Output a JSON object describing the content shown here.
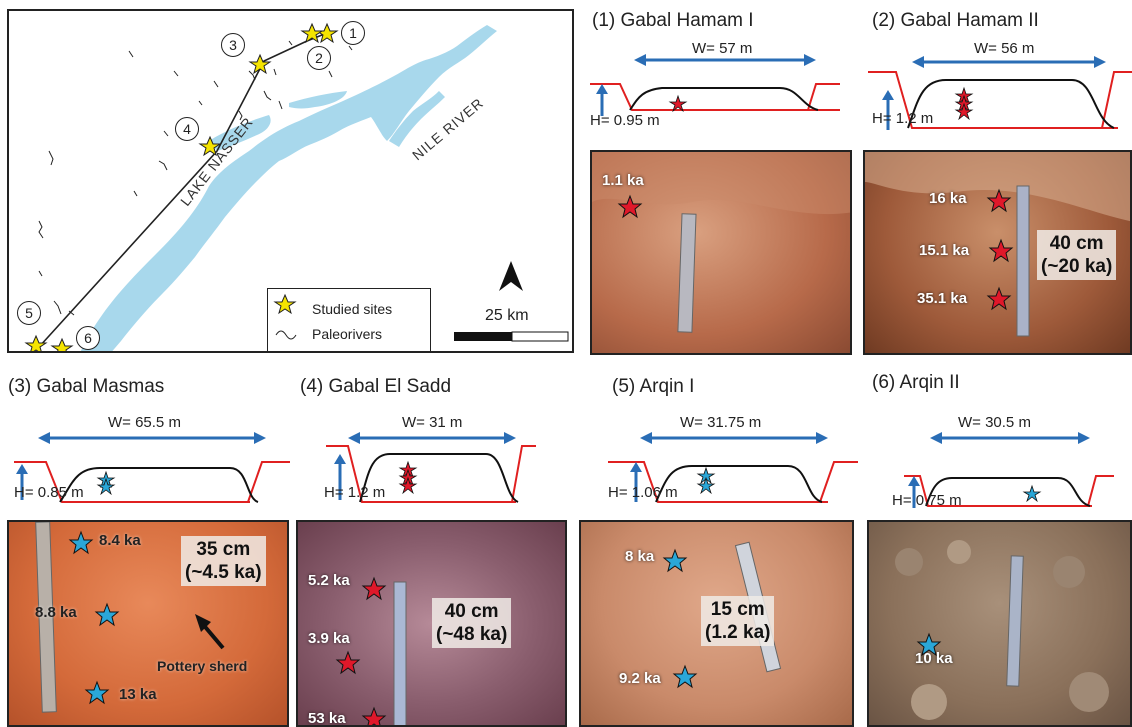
{
  "map": {
    "sites": [
      "1",
      "2",
      "3",
      "4",
      "5",
      "6"
    ],
    "lake_label": "LAKE NASSER",
    "river_label": "NILE RIVER",
    "legend": {
      "studied_sites": "Studied sites",
      "paleorivers": "Paleorivers"
    },
    "scale_label": "25 km",
    "colors": {
      "water": "#a8d8ec",
      "star": "#f5e400"
    }
  },
  "panels": [
    {
      "title": "(1) Gabal Hamam I",
      "width": "W= 57 m",
      "height": "H= 0.95 m",
      "ages": [
        "1.1   ka"
      ]
    },
    {
      "title": "(2) Gabal Hamam II",
      "width": "W= 56 m",
      "height": "H= 1.2 m",
      "ages": [
        "16 ka",
        "15.1 ka",
        "35.1 ka"
      ],
      "box": [
        "40 cm",
        "(~20 ka)"
      ]
    },
    {
      "title": "(3) Gabal Masmas",
      "width": "W= 65.5 m",
      "height": "H= 0.85 m",
      "ages": [
        "8.4 ka",
        "8.8 ka",
        "13 ka"
      ],
      "box": [
        "35 cm",
        "(~4.5 ka)"
      ],
      "note": "Pottery sherd"
    },
    {
      "title": "(4) Gabal El Sadd",
      "width": "W= 31 m",
      "height": "H= 1.2 m",
      "ages": [
        "5.2 ka",
        "3.9 ka",
        "53 ka"
      ],
      "box": [
        "40 cm",
        "(~48 ka)"
      ]
    },
    {
      "title": "(5) Arqin I",
      "width": "W= 31.75 m",
      "height": "H= 1.06 m",
      "ages": [
        "8 ka",
        "9.2 ka"
      ],
      "box": [
        "15 cm",
        "(1.2 ka)"
      ]
    },
    {
      "title": "(6) Arqin II",
      "width": "W= 30.5 m",
      "height": "H= 0.75 m",
      "ages": [
        "10 ka"
      ]
    }
  ],
  "colors": {
    "arrow": "#2a6db5",
    "red_line": "#e02020",
    "red_star": "#e0182a",
    "blue_star": "#2aa7d8",
    "profile": "#111111"
  }
}
